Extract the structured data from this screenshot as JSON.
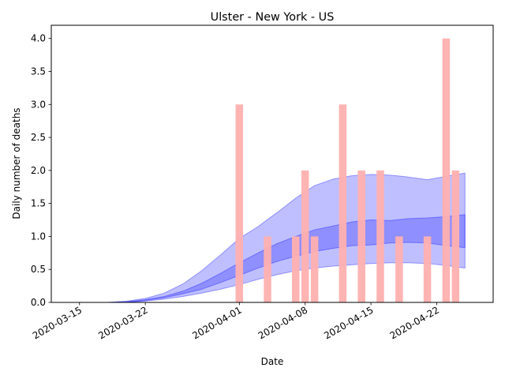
{
  "chart_data": {
    "type": "bar",
    "title": "Ulster - New York - US",
    "xlabel": "Date",
    "ylabel": "Daily number of deaths",
    "ylim": [
      0,
      4.2
    ],
    "xlim": [
      "2020-03-12",
      "2020-04-28"
    ],
    "grid": false,
    "legend": "none",
    "x_ticks": [
      "2020-03-15",
      "2020-03-22",
      "2020-04-01",
      "2020-04-08",
      "2020-04-15",
      "2020-04-22"
    ],
    "y_ticks": [
      "0.0",
      "0.5",
      "1.0",
      "1.5",
      "2.0",
      "2.5",
      "3.0",
      "3.5",
      "4.0"
    ],
    "bars": {
      "color": "#ffb0b0",
      "dates": [
        "2020-04-01",
        "2020-04-04",
        "2020-04-07",
        "2020-04-08",
        "2020-04-09",
        "2020-04-12",
        "2020-04-14",
        "2020-04-16",
        "2020-04-18",
        "2020-04-21",
        "2020-04-23",
        "2020-04-24"
      ],
      "values": [
        3,
        1,
        1,
        2,
        1,
        3,
        2,
        2,
        1,
        1,
        4,
        2
      ]
    },
    "bands": {
      "color": "#0000ff",
      "x": [
        "2020-03-18",
        "2020-03-20",
        "2020-03-22",
        "2020-03-24",
        "2020-03-26",
        "2020-03-28",
        "2020-03-30",
        "2020-04-01",
        "2020-04-03",
        "2020-04-05",
        "2020-04-07",
        "2020-04-09",
        "2020-04-11",
        "2020-04-13",
        "2020-04-15",
        "2020-04-17",
        "2020-04-19",
        "2020-04-21",
        "2020-04-23",
        "2020-04-25"
      ],
      "outer_upper": [
        0.0,
        0.02,
        0.06,
        0.14,
        0.28,
        0.48,
        0.72,
        0.97,
        1.15,
        1.36,
        1.58,
        1.77,
        1.87,
        1.92,
        1.94,
        1.93,
        1.9,
        1.86,
        1.91,
        1.96
      ],
      "inner_upper": [
        0.0,
        0.01,
        0.04,
        0.09,
        0.17,
        0.29,
        0.44,
        0.6,
        0.75,
        0.89,
        1.0,
        1.1,
        1.16,
        1.22,
        1.25,
        1.24,
        1.27,
        1.28,
        1.3,
        1.33
      ],
      "inner_lower": [
        0.0,
        0.0,
        0.03,
        0.07,
        0.13,
        0.2,
        0.3,
        0.41,
        0.52,
        0.62,
        0.7,
        0.77,
        0.82,
        0.86,
        0.87,
        0.9,
        0.91,
        0.9,
        0.86,
        0.83
      ],
      "outer_lower": [
        0.0,
        0.0,
        0.02,
        0.05,
        0.09,
        0.14,
        0.2,
        0.27,
        0.35,
        0.42,
        0.48,
        0.52,
        0.55,
        0.57,
        0.59,
        0.6,
        0.6,
        0.59,
        0.56,
        0.52
      ]
    }
  }
}
